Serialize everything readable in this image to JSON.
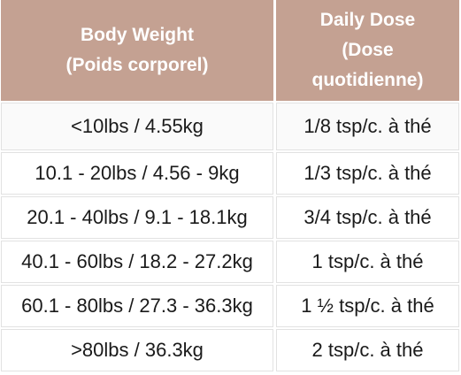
{
  "table": {
    "header": {
      "weight_line1": "Body Weight",
      "weight_line2": "(Poids corporel)",
      "dose_line1": "Daily Dose",
      "dose_line2": "(Dose",
      "dose_line3": "quotidienne)"
    },
    "rows": [
      {
        "weight": "<10lbs / 4.55kg",
        "dose": "1/8 tsp/c. à thé"
      },
      {
        "weight": "10.1 - 20lbs / 4.56 - 9kg",
        "dose": "1/3 tsp/c. à thé"
      },
      {
        "weight": "20.1 - 40lbs / 9.1 - 18.1kg",
        "dose": "3/4 tsp/c. à thé"
      },
      {
        "weight": "40.1 - 60lbs / 18.2 - 27.2kg",
        "dose": "1 tsp/c. à thé"
      },
      {
        "weight": "60.1 - 80lbs / 27.3 - 36.3kg",
        "dose": "1 ½ tsp/c. à thé"
      },
      {
        "weight": ">80lbs / 36.3kg",
        "dose": "2 tsp/c. à thé"
      }
    ]
  },
  "colors": {
    "header_bg": "#c4a192",
    "header_text": "#ffffff",
    "body_text": "#1a1a1a",
    "cell_border": "#e2e2e2"
  }
}
